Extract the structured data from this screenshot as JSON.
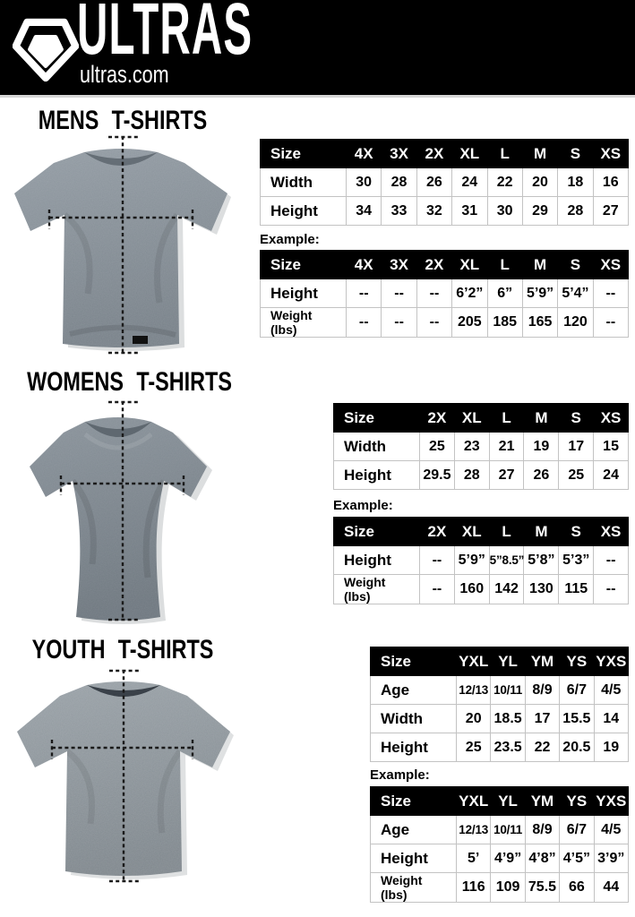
{
  "brand": {
    "name": "ULTRAS",
    "site": "ultras.com",
    "bar_color": "#000000"
  },
  "sections": {
    "mens": {
      "title": "MENS T-SHIRTS",
      "example_label": "Example:",
      "size_table": {
        "columns": [
          "Size",
          "4X",
          "3X",
          "2X",
          "XL",
          "L",
          "M",
          "S",
          "XS"
        ],
        "rows": [
          {
            "label": "Width",
            "values": [
              "30",
              "28",
              "26",
              "24",
              "22",
              "20",
              "18",
              "16"
            ]
          },
          {
            "label": "Height",
            "values": [
              "34",
              "33",
              "32",
              "31",
              "30",
              "29",
              "28",
              "27"
            ]
          }
        ]
      },
      "example_table": {
        "columns": [
          "Size",
          "4X",
          "3X",
          "2X",
          "XL",
          "L",
          "M",
          "S",
          "XS"
        ],
        "rows": [
          {
            "label": "Height",
            "values": [
              "--",
              "--",
              "--",
              "6’2”",
              "6”",
              "5’9”",
              "5’4”",
              "--"
            ]
          },
          {
            "label": "Weight\n(lbs)",
            "values": [
              "--",
              "--",
              "--",
              "205",
              "185",
              "165",
              "120",
              "--"
            ]
          }
        ]
      },
      "shirt_color": "#848d95"
    },
    "womens": {
      "title": "WOMENS T-SHIRTS",
      "example_label": "Example:",
      "size_table": {
        "columns": [
          "Size",
          "2X",
          "XL",
          "L",
          "M",
          "S",
          "XS"
        ],
        "rows": [
          {
            "label": "Width",
            "values": [
              "25",
              "23",
              "21",
              "19",
              "17",
              "15"
            ]
          },
          {
            "label": "Height",
            "values": [
              "29.5",
              "28",
              "27",
              "26",
              "25",
              "24"
            ]
          }
        ]
      },
      "example_table": {
        "columns": [
          "Size",
          "2X",
          "XL",
          "L",
          "M",
          "S",
          "XS"
        ],
        "rows": [
          {
            "label": "Height",
            "values": [
              "--",
              "5’9”",
              "5”8.5”",
              "5’8”",
              "5’3”",
              "--"
            ]
          },
          {
            "label": "Weight\n(lbs)",
            "values": [
              "--",
              "160",
              "142",
              "130",
              "115",
              "--"
            ]
          }
        ]
      },
      "shirt_color": "#7b848c"
    },
    "youth": {
      "title": "YOUTH T-SHIRTS",
      "example_label": "Example:",
      "size_table": {
        "columns": [
          "Size",
          "YXL",
          "YL",
          "YM",
          "YS",
          "YXS"
        ],
        "rows": [
          {
            "label": "Age",
            "values": [
              "12/13",
              "10/11",
              "8/9",
              "6/7",
              "4/5"
            ]
          },
          {
            "label": "Width",
            "values": [
              "20",
              "18.5",
              "17",
              "15.5",
              "14"
            ]
          },
          {
            "label": "Height",
            "values": [
              "25",
              "23.5",
              "22",
              "20.5",
              "19"
            ]
          }
        ]
      },
      "example_table": {
        "columns": [
          "Size",
          "YXL",
          "YL",
          "YM",
          "YS",
          "YXS"
        ],
        "rows": [
          {
            "label": "Age",
            "values": [
              "12/13",
              "10/11",
              "8/9",
              "6/7",
              "4/5"
            ]
          },
          {
            "label": "Height",
            "values": [
              "5’",
              "4’9”",
              "4’8”",
              "4’5”",
              "3’9”"
            ]
          },
          {
            "label": "Weight\n(lbs)",
            "values": [
              "116",
              "109",
              "75.5",
              "66",
              "44"
            ]
          }
        ]
      },
      "shirt_color": "#8b9399"
    }
  }
}
